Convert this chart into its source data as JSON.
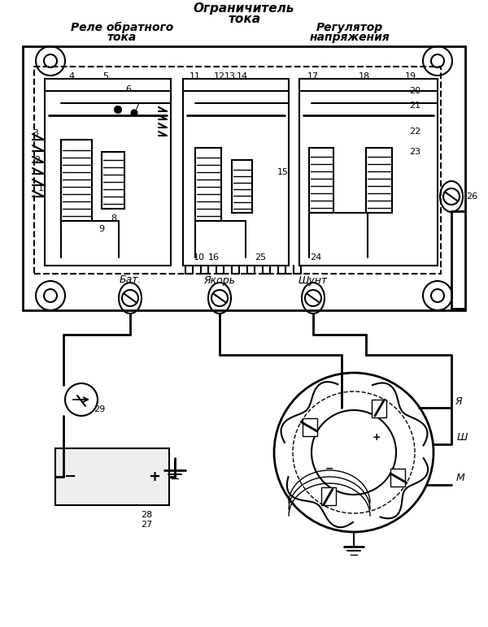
{
  "bg_color": "#ffffff",
  "line_color": "#000000",
  "labels": {
    "ogranichitel1": "Ограничитель",
    "ogranichitel2": "тока",
    "rele1": "Реле обратного",
    "rele2": "тока",
    "regulyator1": "Регулятор",
    "regulyator2": "напряжения",
    "bat": "Бат.",
    "yakor": "Якорь",
    "shunt": "Шунт",
    "ya": "Я",
    "sh": "Ш",
    "m": "М"
  }
}
